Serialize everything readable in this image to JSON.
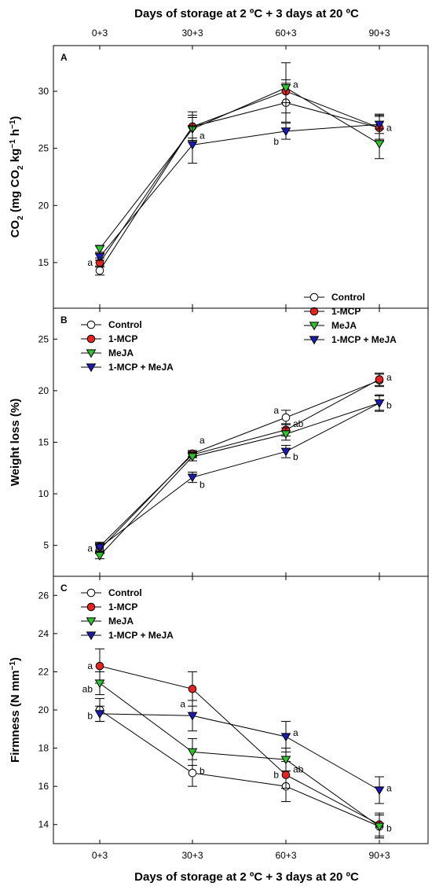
{
  "figure": {
    "top_xlabel": "Days of storage at 2 ºC + 3 days at 20 ºC",
    "bottom_xlabel": "Days of storage at 2 ºC + 3 days at 20 ºC",
    "x_categories": [
      "0+3",
      "30+3",
      "60+3",
      "90+3"
    ]
  },
  "colors": {
    "Control": "#ffffff",
    "1-MCP": "#e8231f",
    "MeJA": "#2ec42e",
    "1-MCP + MeJA": "#1a1ab4"
  },
  "chart_data": [
    {
      "type": "line",
      "panel_label": "A",
      "ylabel": "CO2 (mg CO2 kg−1 h−1)",
      "categories": [
        "0+3",
        "30+3",
        "60+3",
        "90+3"
      ],
      "ylim": [
        11,
        34
      ],
      "yticks": [
        15,
        20,
        25,
        30
      ],
      "legend_position": "bottom-right",
      "series": [
        {
          "name": "Control",
          "marker": "circle",
          "values": [
            14.3,
            26.9,
            29.0,
            26.8
          ],
          "err": [
            0.4,
            1.3,
            1.7,
            1.2
          ]
        },
        {
          "name": "1-MCP",
          "marker": "circle",
          "values": [
            15.0,
            26.9,
            30.0,
            26.8
          ],
          "err": [
            0.4,
            1.0,
            1.0,
            1.0
          ]
        },
        {
          "name": "MeJA",
          "marker": "triangle-down",
          "values": [
            16.2,
            26.7,
            30.3,
            25.4
          ],
          "err": [
            0.3,
            1.0,
            2.2,
            1.3
          ]
        },
        {
          "name": "1-MCP + MeJA",
          "marker": "triangle-down",
          "values": [
            15.5,
            25.3,
            26.5,
            27.1
          ],
          "err": [
            0.3,
            1.6,
            0.7,
            0.8
          ]
        }
      ],
      "annotations": [
        {
          "text": "a",
          "x": "0+3",
          "y": 15.0,
          "side": "left"
        },
        {
          "text": "a",
          "x": "30+3",
          "y": 26.1,
          "side": "right"
        },
        {
          "text": "a",
          "x": "60+3",
          "y": 30.6,
          "side": "right"
        },
        {
          "text": "b",
          "x": "60+3",
          "y": 25.6,
          "side": "left"
        },
        {
          "text": "a",
          "x": "90+3",
          "y": 26.8,
          "side": "right"
        }
      ]
    },
    {
      "type": "line",
      "panel_label": "B",
      "ylabel": "Weight loss (%)",
      "categories": [
        "0+3",
        "30+3",
        "60+3",
        "90+3"
      ],
      "ylim": [
        2,
        28
      ],
      "yticks": [
        5,
        10,
        15,
        20,
        25
      ],
      "legend_position": "top-left",
      "series": [
        {
          "name": "Control",
          "marker": "circle",
          "values": [
            4.6,
            13.9,
            17.4,
            21.0
          ],
          "err": [
            0.4,
            0.3,
            0.7,
            0.6
          ]
        },
        {
          "name": "1-MCP",
          "marker": "circle",
          "values": [
            4.9,
            13.8,
            16.2,
            21.1
          ],
          "err": [
            0.4,
            0.3,
            0.6,
            0.6
          ]
        },
        {
          "name": "MeJA",
          "marker": "triangle-down",
          "values": [
            4.0,
            13.6,
            15.8,
            18.8
          ],
          "err": [
            0.3,
            0.4,
            0.6,
            0.7
          ]
        },
        {
          "name": "1-MCP + MeJA",
          "marker": "triangle-down",
          "values": [
            4.8,
            11.6,
            14.1,
            18.8
          ],
          "err": [
            0.4,
            0.5,
            0.6,
            0.8
          ]
        }
      ],
      "annotations": [
        {
          "text": "a",
          "x": "0+3",
          "y": 4.7,
          "side": "left"
        },
        {
          "text": "a",
          "x": "30+3",
          "y": 15.2,
          "side": "right"
        },
        {
          "text": "b",
          "x": "30+3",
          "y": 10.9,
          "side": "right"
        },
        {
          "text": "a",
          "x": "60+3",
          "y": 18.1,
          "side": "left"
        },
        {
          "text": "ab",
          "x": "60+3",
          "y": 16.8,
          "side": "right"
        },
        {
          "text": "b",
          "x": "60+3",
          "y": 13.6,
          "side": "right"
        },
        {
          "text": "a",
          "x": "90+3",
          "y": 21.3,
          "side": "right"
        },
        {
          "text": "b",
          "x": "90+3",
          "y": 18.6,
          "side": "right"
        }
      ]
    },
    {
      "type": "line",
      "panel_label": "C",
      "ylabel": "Firmness (N mm−1)",
      "categories": [
        "0+3",
        "30+3",
        "60+3",
        "90+3"
      ],
      "ylim": [
        13,
        27
      ],
      "yticks": [
        14,
        16,
        18,
        20,
        22,
        24,
        26
      ],
      "legend_position": "top-left",
      "series": [
        {
          "name": "Control",
          "marker": "circle",
          "values": [
            20.0,
            16.7,
            16.0,
            13.9
          ],
          "err": [
            0.6,
            0.7,
            0.8,
            0.6
          ]
        },
        {
          "name": "1-MCP",
          "marker": "circle",
          "values": [
            22.3,
            21.1,
            16.6,
            14.0
          ],
          "err": [
            0.9,
            0.9,
            0.7,
            0.6
          ]
        },
        {
          "name": "MeJA",
          "marker": "triangle-down",
          "values": [
            21.4,
            17.8,
            17.4,
            13.9
          ],
          "err": [
            0.6,
            0.7,
            0.6,
            0.6
          ]
        },
        {
          "name": "1-MCP + MeJA",
          "marker": "triangle-down",
          "values": [
            19.8,
            19.7,
            18.6,
            15.8
          ],
          "err": [
            0.4,
            0.8,
            0.8,
            0.7
          ]
        }
      ],
      "annotations": [
        {
          "text": "a",
          "x": "0+3",
          "y": 22.3,
          "side": "left"
        },
        {
          "text": "ab",
          "x": "0+3",
          "y": 21.1,
          "side": "left"
        },
        {
          "text": "b",
          "x": "0+3",
          "y": 19.7,
          "side": "left"
        },
        {
          "text": "a",
          "x": "30+3",
          "y": 20.3,
          "side": "left"
        },
        {
          "text": "b",
          "x": "30+3",
          "y": 16.8,
          "side": "right"
        },
        {
          "text": "a",
          "x": "60+3",
          "y": 18.8,
          "side": "right"
        },
        {
          "text": "b",
          "x": "60+3",
          "y": 16.6,
          "side": "left"
        },
        {
          "text": "ab",
          "x": "60+3",
          "y": 16.9,
          "side": "right"
        },
        {
          "text": "a",
          "x": "90+3",
          "y": 15.9,
          "side": "right"
        },
        {
          "text": "b",
          "x": "90+3",
          "y": 13.8,
          "side": "right"
        }
      ]
    }
  ]
}
